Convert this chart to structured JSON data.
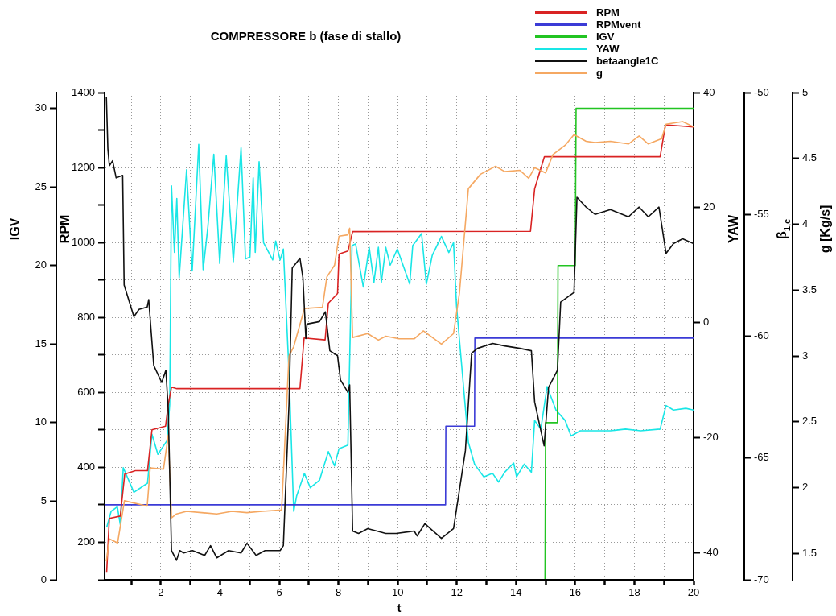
{
  "chart_data": [
    {
      "type": "line",
      "title": "COMPRESSORE b (fase di stallo)",
      "xlabel": "t",
      "ylabel": "RPM",
      "y2label": "IGV",
      "y3label": "YAW",
      "xlim": [
        0.1,
        20
      ],
      "xticks": [
        {
          "value": 1,
          "label": null
        },
        2,
        {
          "value": 3,
          "label": null
        },
        4,
        {
          "value": 5,
          "label": null
        },
        6,
        {
          "value": 7,
          "label": null
        },
        8,
        {
          "value": 9,
          "label": null
        },
        10,
        {
          "value": 11,
          "label": null
        },
        12,
        {
          "value": 13,
          "label": null
        },
        14,
        {
          "value": 15,
          "label": null
        },
        16,
        {
          "value": 17,
          "label": null
        },
        18,
        {
          "value": 19,
          "label": null
        },
        20
      ],
      "ylim": [
        100,
        1400
      ],
      "yticks": [
        {
          "value": 100,
          "label": null
        },
        200,
        {
          "value": 300,
          "label": null
        },
        400,
        {
          "value": 500,
          "label": null
        },
        600,
        {
          "value": 700,
          "label": null
        },
        800,
        {
          "value": 900,
          "label": null
        },
        1000,
        {
          "value": 1100,
          "label": null
        },
        1200,
        {
          "value": 1300,
          "label": null
        },
        1400
      ],
      "y2lim": [
        0,
        31
      ],
      "y2ticks": [
        0,
        5,
        10,
        15,
        20,
        25,
        30
      ],
      "y3lim": [
        -44.7,
        40
      ],
      "y3ticks": [
        -40,
        -20,
        0,
        20,
        40
      ],
      "grid": true,
      "legend": "top right",
      "series": [
        {
          "name": "RPM",
          "color": "#d92323",
          "x": [
            0.17,
            0.26,
            0.63,
            0.78,
            1.14,
            1.55,
            1.7,
            2.16,
            2.25,
            2.36,
            2.54,
            6.7,
            6.84,
            7.55,
            7.66,
            7.97,
            8.02,
            8.32,
            8.48,
            14.49,
            14.63,
            14.96,
            18.87,
            19.05,
            20
          ],
          "values": [
            121,
            264,
            270,
            382,
            391,
            391,
            500,
            510,
            567,
            614,
            610,
            610,
            745,
            740,
            838,
            864,
            969,
            977,
            1029,
            1030,
            1143,
            1229,
            1229,
            1314,
            1308
          ]
        },
        {
          "name": "RPMvent",
          "color": "#3b3bd6",
          "x": [
            0.1,
            11.62,
            11.63,
            12.6,
            12.61,
            20
          ],
          "values": [
            300,
            300,
            510,
            510,
            745,
            745
          ]
        },
        {
          "name": "IGV",
          "color": "#22c422",
          "axis": "y2",
          "x": [
            14.98,
            15.0,
            15.4,
            15.42,
            16.0,
            16.03,
            20
          ],
          "values": [
            0,
            10,
            10,
            20,
            20,
            30,
            30
          ]
        },
        {
          "name": "YAW",
          "color": "#19e6e6",
          "axis": "y3",
          "x": [
            0.17,
            0.32,
            0.53,
            0.63,
            0.73,
            1.09,
            1.55,
            1.7,
            1.9,
            2.21,
            2.3,
            2.36,
            2.46,
            2.54,
            2.62,
            2.87,
            3.06,
            3.28,
            3.43,
            3.59,
            3.79,
            3.99,
            4.21,
            4.45,
            4.55,
            4.71,
            4.86,
            5.01,
            5.12,
            5.19,
            5.32,
            5.47,
            5.78,
            5.88,
            6.03,
            6.14,
            6.33,
            6.49,
            6.59,
            6.85,
            7.05,
            7.36,
            7.66,
            7.87,
            8.02,
            8.32,
            8.46,
            8.58,
            8.84,
            9.04,
            9.2,
            9.35,
            9.45,
            9.6,
            9.75,
            9.99,
            10.41,
            10.51,
            10.81,
            10.97,
            11.17,
            11.48,
            11.73,
            11.89,
            11.99,
            12.39,
            12.6,
            12.91,
            13.21,
            13.41,
            13.62,
            13.92,
            14.02,
            14.28,
            14.52,
            14.63,
            14.84,
            15.05,
            15.35,
            15.66,
            15.86,
            16.17,
            16.67,
            17.19,
            17.7,
            18.21,
            18.87,
            19.07,
            19.32,
            19.74,
            20
          ],
          "values": [
            -35.6,
            -32.8,
            -32,
            -35.1,
            -25.2,
            -29.5,
            -27.9,
            -19.4,
            -22.9,
            -20.5,
            -14.2,
            23.8,
            12.2,
            21.6,
            7.8,
            26.6,
            9,
            31,
            9.2,
            16.7,
            29.3,
            10.3,
            29,
            10.6,
            18.3,
            30.4,
            11.1,
            11.4,
            25.2,
            12.2,
            28,
            13.9,
            10.9,
            14.2,
            10.9,
            12.8,
            -8.6,
            -32.8,
            -30.1,
            -26.2,
            -28.7,
            -27.4,
            -22.4,
            -24.9,
            -21.9,
            -21.3,
            13.4,
            13.7,
            6.2,
            13.1,
            7,
            13.1,
            7,
            13.1,
            10,
            12.8,
            6.7,
            13.4,
            15.5,
            6.7,
            11.7,
            15,
            12.2,
            13.9,
            2.9,
            -20.8,
            -24.6,
            -26.8,
            -26.2,
            -27.7,
            -26,
            -24.4,
            -26.8,
            -24.6,
            -26,
            -17,
            -18.5,
            -11.1,
            -15.2,
            -17,
            -19.7,
            -18.8,
            -18.8,
            -18.8,
            -18.5,
            -18.8,
            -18.5,
            -14.4,
            -15.2,
            -14.9,
            -15.2
          ]
        }
      ]
    },
    {
      "type": "line",
      "ylabel": "β$_{1,c}$",
      "y2label": "g [Kg/s]",
      "xlim": [
        0.1,
        20
      ],
      "tick_labels": "y",
      "xticks": [
        {
          "value": 1,
          "label": null
        },
        2,
        {
          "value": 3,
          "label": null
        },
        4,
        {
          "value": 5,
          "label": null
        },
        6,
        {
          "value": 7,
          "label": null
        },
        8,
        {
          "value": 9,
          "label": null
        },
        10,
        {
          "value": 11,
          "label": null
        },
        12,
        {
          "value": 13,
          "label": null
        },
        14,
        {
          "value": 15,
          "label": null
        },
        16,
        {
          "value": 17,
          "label": null
        },
        18,
        {
          "value": 19,
          "label": null
        },
        20
      ],
      "ylim": [
        -70,
        -50
      ],
      "yticks": [
        -70,
        -65,
        -60,
        -55,
        -50
      ],
      "y2lim": [
        1.3,
        5
      ],
      "y2ticks": [
        1.5,
        2,
        2.5,
        3,
        3.5,
        4,
        4.5,
        5
      ],
      "legend": "top right",
      "series": [
        {
          "name": "betaangle1C",
          "color": "#111111",
          "x": [
            0.16,
            0.21,
            0.26,
            0.37,
            0.49,
            0.71,
            0.76,
            1.09,
            1.26,
            1.54,
            1.59,
            1.76,
            2.03,
            2.17,
            2.25,
            2.36,
            2.53,
            2.64,
            2.77,
            3.07,
            3.48,
            3.68,
            3.89,
            4.29,
            4.71,
            4.91,
            5.22,
            5.52,
            6.03,
            6.14,
            6.33,
            6.44,
            6.7,
            6.8,
            6.9,
            6.94,
            7.36,
            7.56,
            7.71,
            7.97,
            8.07,
            8.32,
            8.38,
            8.48,
            8.68,
            8.99,
            9.3,
            9.6,
            9.95,
            10.56,
            10.66,
            10.92,
            11.48,
            11.89,
            12.29,
            12.5,
            12.7,
            13.21,
            13.62,
            14.13,
            14.52,
            14.63,
            14.95,
            15.1,
            15.4,
            15.51,
            15.96,
            16.06,
            16.37,
            16.67,
            17.19,
            17.8,
            18.16,
            18.47,
            18.83,
            19.07,
            19.32,
            19.63,
            20
          ],
          "values": [
            -50.2,
            -52.3,
            -53,
            -52.8,
            -53.5,
            -53.4,
            -57.9,
            -59.2,
            -58.9,
            -58.8,
            -58.5,
            -61.2,
            -61.9,
            -61.4,
            -63,
            -68.8,
            -69.2,
            -68.8,
            -68.9,
            -68.8,
            -69,
            -68.6,
            -69.1,
            -68.8,
            -68.9,
            -68.5,
            -69,
            -68.8,
            -68.8,
            -68.6,
            -62.8,
            -57.2,
            -56.8,
            -57.6,
            -60.1,
            -59.5,
            -59.4,
            -59,
            -60.6,
            -60.8,
            -61.8,
            -62.3,
            -62,
            -68,
            -68.1,
            -67.9,
            -68,
            -68.1,
            -68.1,
            -68,
            -68.2,
            -67.7,
            -68.3,
            -67.9,
            -64.7,
            -60.7,
            -60.5,
            -60.3,
            -60.4,
            -60.5,
            -60.6,
            -62.7,
            -64.5,
            -62.1,
            -61.4,
            -58.6,
            -58.2,
            -54.3,
            -54.7,
            -55,
            -54.8,
            -55.1,
            -54.7,
            -55.1,
            -54.7,
            -56.6,
            -56.2,
            -56,
            -56.2
          ]
        },
        {
          "name": "g",
          "color": "#f5a862",
          "axis": "y2",
          "x": [
            0.16,
            0.26,
            0.54,
            0.77,
            1.54,
            1.64,
            2.09,
            2.25,
            2.36,
            2.53,
            2.87,
            3.38,
            3.89,
            4.4,
            4.91,
            5.42,
            6.08,
            6.33,
            6.49,
            6.85,
            7.46,
            7.61,
            7.87,
            8.02,
            8.32,
            8.38,
            8.48,
            8.99,
            9.35,
            9.6,
            10.05,
            10.56,
            10.87,
            11.48,
            11.89,
            12.09,
            12.39,
            12.8,
            13.31,
            13.62,
            14.13,
            14.43,
            14.63,
            15,
            15.25,
            15.66,
            15.96,
            16.37,
            16.67,
            17.19,
            17.8,
            18.16,
            18.47,
            18.92,
            19.07,
            19.63,
            20
          ],
          "values": [
            1.44,
            1.61,
            1.58,
            1.9,
            1.86,
            2.15,
            2.14,
            2.4,
            1.77,
            1.8,
            1.82,
            1.81,
            1.8,
            1.82,
            1.81,
            1.82,
            1.83,
            3,
            3.07,
            3.36,
            3.37,
            3.6,
            3.69,
            3.91,
            3.92,
            3.97,
            3.14,
            3.17,
            3.12,
            3.15,
            3.13,
            3.13,
            3.19,
            3.09,
            3.17,
            3.48,
            4.27,
            4.38,
            4.44,
            4.4,
            4.41,
            4.35,
            4.43,
            4.39,
            4.53,
            4.6,
            4.68,
            4.63,
            4.62,
            4.63,
            4.61,
            4.67,
            4.61,
            4.65,
            4.76,
            4.78,
            4.74
          ]
        }
      ]
    }
  ]
}
